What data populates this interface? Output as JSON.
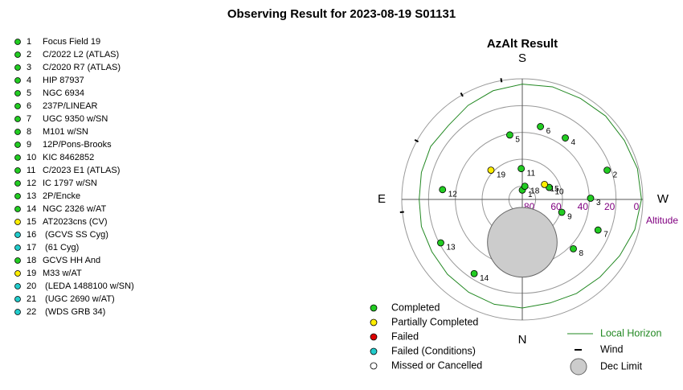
{
  "title": "Observing Result for 2023-08-19 S01131",
  "chart_data": {
    "type": "polar",
    "title": "AzAlt Result",
    "directions": [
      "S",
      "W",
      "N",
      "E"
    ],
    "rlabel": "Altitude",
    "rlim": [
      90,
      0
    ],
    "rticks": [
      80,
      60,
      40,
      20,
      0
    ],
    "targets": [
      {
        "id": 1,
        "name": "Focus Field 19",
        "color": "#22cc22",
        "az": 180,
        "alt": 83
      },
      {
        "id": 2,
        "name": "C/2022 L2 (ATLAS)",
        "color": "#22cc22",
        "az": 251,
        "alt": 23
      },
      {
        "id": 3,
        "name": "C/2020 R7 (ATLAS)",
        "color": "#22cc22",
        "az": 269,
        "alt": 39
      },
      {
        "id": 4,
        "name": "HIP 87937",
        "color": "#22cc22",
        "az": 215,
        "alt": 34
      },
      {
        "id": 5,
        "name": "NGC 6934",
        "color": "#22cc22",
        "az": 169,
        "alt": 41
      },
      {
        "id": 6,
        "name": "237P/LINEAR",
        "color": "#22cc22",
        "az": 194,
        "alt": 34
      },
      {
        "id": 7,
        "name": "UGC 9350 w/SN",
        "color": "#22cc22",
        "az": 292,
        "alt": 29
      },
      {
        "id": 8,
        "name": "M101 w/SN",
        "color": "#22cc22",
        "az": 314,
        "alt": 37
      },
      {
        "id": 9,
        "name": "12P/Pons-Brooks",
        "color": "#22cc22",
        "az": 288,
        "alt": 59
      },
      {
        "id": 10,
        "name": "KIC 8462852",
        "color": "#22cc22",
        "az": 246,
        "alt": 68
      },
      {
        "id": 11,
        "name": "C/2023 E1 (ATLAS)",
        "color": "#22cc22",
        "az": 178,
        "alt": 67
      },
      {
        "id": 12,
        "name": "IC 1797 w/SN",
        "color": "#22cc22",
        "az": 97,
        "alt": 30
      },
      {
        "id": 13,
        "name": "2P/Encke",
        "color": "#22cc22",
        "az": 62,
        "alt": 21
      },
      {
        "id": 14,
        "name": "NGC 2326 w/AT",
        "color": "#22cc22",
        "az": 33,
        "alt": 24
      },
      {
        "id": 15,
        "name": "AT2023cns (CV)",
        "color": "#ffee00",
        "az": 236,
        "alt": 70
      },
      {
        "id": 16,
        "name": " (GCVS SS Cyg)",
        "color": "#22cccc",
        "az": null,
        "alt": null
      },
      {
        "id": 17,
        "name": " (61 Cyg)",
        "color": "#22cccc",
        "az": null,
        "alt": null
      },
      {
        "id": 18,
        "name": "GCVS HH And",
        "color": "#22cc22",
        "az": 191,
        "alt": 80
      },
      {
        "id": 19,
        "name": "M33 w/AT",
        "color": "#ffee00",
        "az": 133,
        "alt": 58
      },
      {
        "id": 20,
        "name": " (LEDA 1488100 w/SN)",
        "color": "#22cccc",
        "az": null,
        "alt": null
      },
      {
        "id": 21,
        "name": " (UGC 2690 w/AT)",
        "color": "#22cccc",
        "az": null,
        "alt": null
      },
      {
        "id": 22,
        "name": " (WDS GRB 34)",
        "color": "#22cccc",
        "az": null,
        "alt": null
      }
    ],
    "legend": [
      {
        "label": "Completed",
        "color": "#22cc22"
      },
      {
        "label": "Partially Completed",
        "color": "#ffee00"
      },
      {
        "label": "Failed",
        "color": "#dd0000"
      },
      {
        "label": "Failed (Conditions)",
        "color": "#22cccc"
      },
      {
        "label": "Missed or Cancelled",
        "color": "#ffffff"
      }
    ],
    "horizon": {
      "name": "Local Horizon",
      "color": "#228822",
      "az": [
        0,
        15,
        30,
        45,
        60,
        75,
        90,
        105,
        120,
        135,
        150,
        165,
        180,
        195,
        210,
        225,
        240,
        255,
        270,
        285,
        300,
        315,
        330,
        345
      ],
      "alt": [
        9,
        9,
        10,
        11,
        12,
        12,
        13,
        12,
        11,
        12,
        9,
        6,
        4,
        3,
        3,
        2,
        2,
        1,
        1,
        3,
        6,
        8,
        9,
        10
      ]
    },
    "wind": {
      "name": "Wind",
      "az": [
        170,
        150,
        119,
        84
      ]
    },
    "dec_limit": {
      "name": "Dec Limit",
      "az": 0,
      "alt": 58,
      "radius": 26
    }
  }
}
